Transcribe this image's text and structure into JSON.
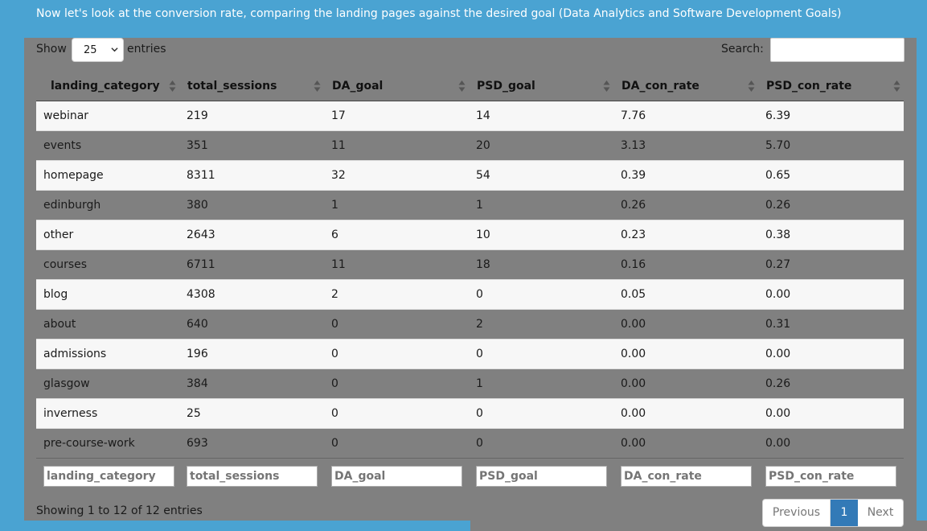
{
  "intro": "Now let's look at the conversion rate, comparing the landing pages against the desired goal (Data Analytics and Software Development Goals)",
  "controls": {
    "show_label": "Show",
    "entries_value": "25",
    "entries_label": "entries",
    "search_label": "Search:",
    "search_value": ""
  },
  "columns": [
    "landing_category",
    "total_sessions",
    "DA_goal",
    "PSD_goal",
    "DA_con_rate",
    "PSD_con_rate"
  ],
  "rows": [
    [
      "webinar",
      "219",
      "17",
      "14",
      "7.76",
      "6.39"
    ],
    [
      "events",
      "351",
      "11",
      "20",
      "3.13",
      "5.70"
    ],
    [
      "homepage",
      "8311",
      "32",
      "54",
      "0.39",
      "0.65"
    ],
    [
      "edinburgh",
      "380",
      "1",
      "1",
      "0.26",
      "0.26"
    ],
    [
      "other",
      "2643",
      "6",
      "10",
      "0.23",
      "0.38"
    ],
    [
      "courses",
      "6711",
      "11",
      "18",
      "0.16",
      "0.27"
    ],
    [
      "blog",
      "4308",
      "2",
      "0",
      "0.05",
      "0.00"
    ],
    [
      "about",
      "640",
      "0",
      "2",
      "0.00",
      "0.31"
    ],
    [
      "admissions",
      "196",
      "0",
      "0",
      "0.00",
      "0.00"
    ],
    [
      "glasgow",
      "384",
      "0",
      "1",
      "0.00",
      "0.26"
    ],
    [
      "inverness",
      "25",
      "0",
      "0",
      "0.00",
      "0.00"
    ],
    [
      "pre-course-work",
      "693",
      "0",
      "0",
      "0.00",
      "0.00"
    ]
  ],
  "footer_filters": [
    "landing_category",
    "total_sessions",
    "DA_goal",
    "PSD_goal",
    "DA_con_rate",
    "PSD_con_rate"
  ],
  "info": "Showing 1 to 12 of 12 entries",
  "pagination": {
    "previous": "Previous",
    "current": "1",
    "next": "Next"
  },
  "colors": {
    "background": "#4aa3d2",
    "panel": "#808080",
    "active_page": "#337ab7"
  }
}
